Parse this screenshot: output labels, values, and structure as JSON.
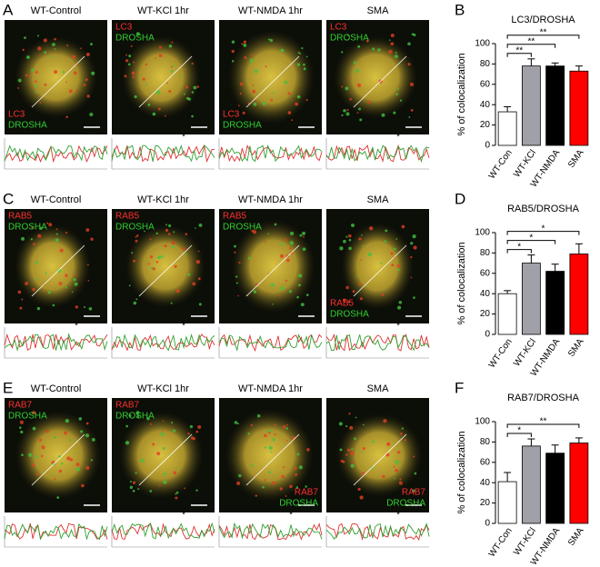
{
  "image_panels": [
    {
      "letter": "A",
      "images": [
        {
          "title": "WT-Control",
          "channels": [
            "LC3",
            "DROSHA"
          ]
        },
        {
          "title": "WT-KCl 1hr",
          "channels": [
            "LC3",
            "DROSHA"
          ],
          "profile_star": "*"
        },
        {
          "title": "WT-NMDA 1hr",
          "channels": [
            "LC3",
            "DROSHA"
          ]
        },
        {
          "title": "SMA",
          "channels": [
            "LC3",
            "DROSHA"
          ],
          "profile_star": "*"
        }
      ]
    },
    {
      "letter": "C",
      "images": [
        {
          "title": "WT-Control",
          "channels": [
            "RAB5",
            "DROSHA"
          ],
          "profile_star": "*"
        },
        {
          "title": "WT-KCl 1hr",
          "channels": [
            "RAB5",
            "DROSHA"
          ],
          "profile_star": "*"
        },
        {
          "title": "WT-NMDA 1hr",
          "channels": [
            "RAB5",
            "DROSHA"
          ]
        },
        {
          "title": "SMA",
          "channels": [
            "RAB5",
            "DROSHA"
          ],
          "profile_star": "*"
        }
      ]
    },
    {
      "letter": "E",
      "images": [
        {
          "title": "WT-Control",
          "channels": [
            "RAB7",
            "DROSHA"
          ]
        },
        {
          "title": "WT-KCl 1hr",
          "channels": [
            "RAB7",
            "DROSHA"
          ],
          "profile_star": "*"
        },
        {
          "title": "WT-NMDA 1hr",
          "channels": [
            "RAB7",
            "DROSHA"
          ],
          "profile_star": "*"
        },
        {
          "title": "SMA",
          "channels": [
            "RAB7",
            "DROSHA"
          ],
          "profile_star": "*"
        }
      ]
    }
  ],
  "chart_data": [
    {
      "type": "bar",
      "letter": "B",
      "title": "LC3/DROSHA",
      "y_label": "% of colocalization",
      "categories": [
        "WT-Con",
        "WT-KCl",
        "WT-NMDA",
        "SMA"
      ],
      "values": [
        33,
        78,
        78,
        73
      ],
      "errors": [
        5,
        7,
        3,
        5
      ],
      "colors": [
        "#ffffff",
        "#a0a0a8",
        "#000000",
        "#ff0000"
      ],
      "ylim": [
        0,
        100
      ],
      "yticks": [
        0,
        20,
        40,
        60,
        80,
        100
      ],
      "annotations": [
        {
          "text": "**",
          "pair": [
            "WT-Con",
            "WT-KCl"
          ]
        },
        {
          "text": "**",
          "pair": [
            "WT-Con",
            "WT-NMDA"
          ]
        },
        {
          "text": "**",
          "pair": [
            "WT-Con",
            "SMA"
          ]
        }
      ]
    },
    {
      "type": "bar",
      "letter": "D",
      "title": "RAB5/DROSHA",
      "y_label": "% of colocalization",
      "categories": [
        "WT-Con",
        "WT-KCl",
        "WT-NMDA",
        "SMA"
      ],
      "values": [
        40,
        70,
        62,
        79
      ],
      "errors": [
        3,
        8,
        7,
        10
      ],
      "colors": [
        "#ffffff",
        "#a0a0a8",
        "#000000",
        "#ff0000"
      ],
      "ylim": [
        0,
        100
      ],
      "yticks": [
        0,
        20,
        40,
        60,
        80,
        100
      ],
      "annotations": [
        {
          "text": "*",
          "pair": [
            "WT-Con",
            "WT-KCl"
          ]
        },
        {
          "text": "*",
          "pair": [
            "WT-Con",
            "WT-NMDA"
          ]
        },
        {
          "text": "*",
          "pair": [
            "WT-Con",
            "SMA"
          ]
        }
      ]
    },
    {
      "type": "bar",
      "letter": "F",
      "title": "RAB7/DROSHA",
      "y_label": "% of colocalization",
      "categories": [
        "WT-Con",
        "WT-KCl",
        "WT-NMDA",
        "SMA"
      ],
      "values": [
        41,
        76,
        69,
        79
      ],
      "errors": [
        9,
        7,
        8,
        5
      ],
      "colors": [
        "#ffffff",
        "#a0a0a8",
        "#000000",
        "#ff0000"
      ],
      "ylim": [
        0,
        100
      ],
      "yticks": [
        0,
        20,
        40,
        60,
        80,
        100
      ],
      "annotations": [
        {
          "text": "*",
          "pair": [
            "WT-Con",
            "WT-KCl"
          ]
        },
        {
          "text": "**",
          "pair": [
            "WT-Con",
            "SMA"
          ]
        }
      ]
    }
  ]
}
